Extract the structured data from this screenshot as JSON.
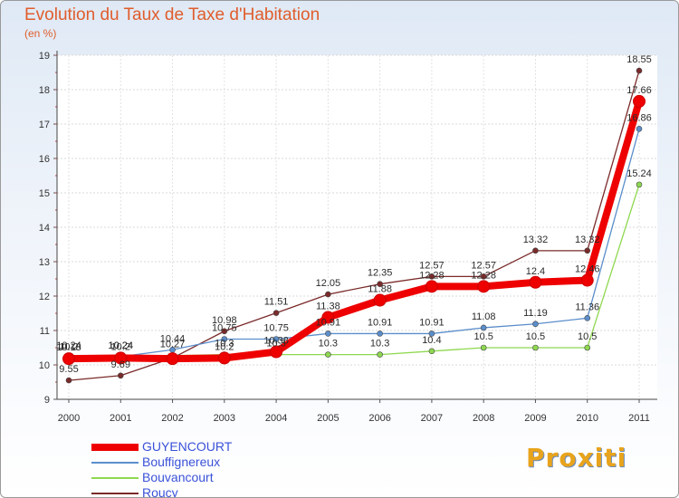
{
  "chart_data": {
    "type": "line",
    "title": "Evolution du Taux de Taxe d'Habitation",
    "unit_label": "(en %)",
    "x": [
      "2000",
      "2001",
      "2002",
      "2003",
      "2004",
      "2005",
      "2006",
      "2007",
      "2008",
      "2009",
      "2010",
      "2011"
    ],
    "ylim": [
      9,
      19
    ],
    "yticks": [
      9,
      10,
      11,
      12,
      13,
      14,
      15,
      16,
      17,
      18,
      19
    ],
    "series": [
      {
        "name": "GUYENCOURT",
        "color": "#ee0000",
        "values": [
          10.18,
          10.2,
          10.18,
          10.2,
          10.38,
          11.38,
          11.88,
          12.28,
          12.28,
          12.4,
          12.46,
          17.66
        ],
        "labels": [
          "10.18",
          "10.2",
          "",
          "10.2",
          "10.38",
          "11.38",
          "11.88",
          "12.28",
          "12.28",
          "12.4",
          "12.46",
          "17.66"
        ]
      },
      {
        "name": "Bouffignereux",
        "color": "#5b8ecb",
        "values": [
          10.2,
          10.24,
          10.44,
          10.75,
          10.75,
          10.91,
          10.91,
          10.91,
          11.08,
          11.19,
          11.36,
          16.86
        ],
        "labels": [
          "10.2",
          "10.24",
          "10.44",
          "10.75",
          "10.75",
          "10.91",
          "10.91",
          "10.91",
          "11.08",
          "11.19",
          "11.36",
          "16.86"
        ]
      },
      {
        "name": "Bouvancourt",
        "color": "#8ed850",
        "values": [
          10.24,
          10.24,
          10.27,
          10.3,
          10.3,
          10.3,
          10.3,
          10.4,
          10.5,
          10.5,
          10.5,
          15.24
        ],
        "labels": [
          "10.24",
          "10.24",
          "10.27",
          "10.3",
          "10.3",
          "10.3",
          "10.3",
          "10.4",
          "10.5",
          "10.5",
          "10.5",
          "15.24"
        ]
      },
      {
        "name": "Roucy",
        "color": "#7a2a2a",
        "values": [
          9.55,
          9.69,
          10.2,
          10.98,
          11.51,
          12.05,
          12.35,
          12.57,
          12.57,
          13.32,
          13.32,
          18.55
        ],
        "labels": [
          "9.55",
          "9.69",
          "",
          "10.98",
          "11.51",
          "12.05",
          "12.35",
          "12.57",
          "12.57",
          "13.32",
          "13.32",
          "18.55"
        ]
      }
    ],
    "legend_position": "bottom-left"
  },
  "branding": {
    "logo_text": "Proxiti"
  }
}
